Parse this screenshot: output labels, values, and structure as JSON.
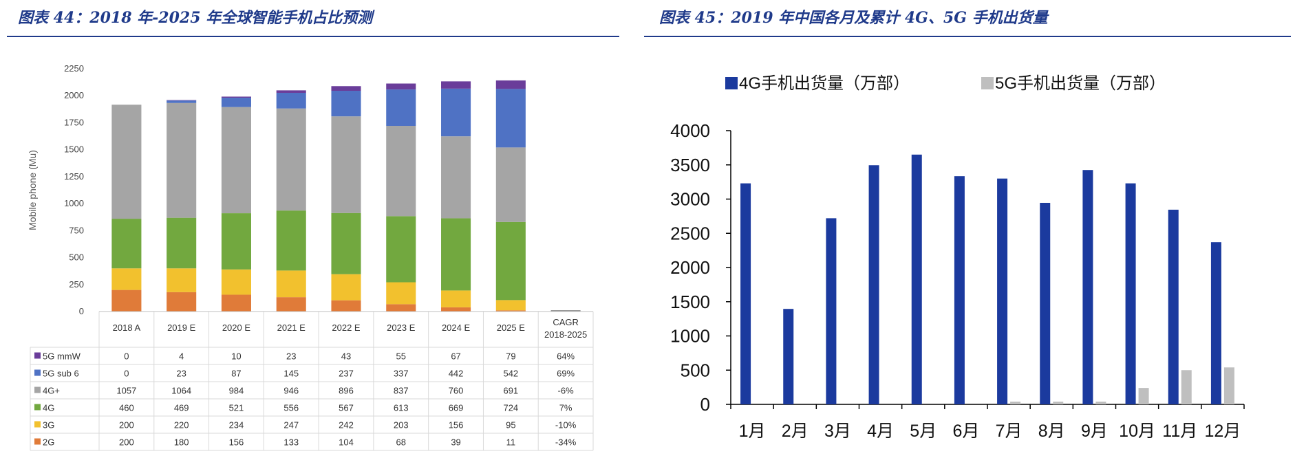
{
  "left": {
    "title": "图表 44：2018 年-2025 年全球智能手机占比预测",
    "chart_data": {
      "type": "bar",
      "stacked": true,
      "ylabel": "Mobile phone (Mu)",
      "ylim": [
        0,
        2250
      ],
      "yticks": [
        0,
        250,
        500,
        750,
        1000,
        1250,
        1500,
        1750,
        2000,
        2250
      ],
      "categories": [
        "2018 A",
        "2019 E",
        "2020 E",
        "2021 E",
        "2022 E",
        "2023 E",
        "2024 E",
        "2025 E"
      ],
      "extra_column": "CAGR 2018-2025",
      "series": [
        {
          "name": "2G",
          "color": "#E07B39",
          "values": [
            200,
            180,
            156,
            133,
            104,
            68,
            39,
            11
          ],
          "cagr": "-34%"
        },
        {
          "name": "3G",
          "color": "#F2C12E",
          "values": [
            200,
            220,
            234,
            247,
            242,
            203,
            156,
            95
          ],
          "cagr": "-10%"
        },
        {
          "name": "4G",
          "color": "#72A83F",
          "values": [
            460,
            469,
            521,
            556,
            567,
            613,
            669,
            724
          ],
          "cagr": "7%"
        },
        {
          "name": "4G+",
          "color": "#A5A5A5",
          "values": [
            1057,
            1064,
            984,
            946,
            896,
            837,
            760,
            691
          ],
          "cagr": "-6%"
        },
        {
          "name": "5G sub 6",
          "color": "#4F72C4",
          "values": [
            0,
            23,
            87,
            145,
            237,
            337,
            442,
            542
          ],
          "cagr": "69%"
        },
        {
          "name": "5G mmW",
          "color": "#6A3D9A",
          "values": [
            0,
            4,
            10,
            23,
            43,
            55,
            67,
            79
          ],
          "cagr": "64%"
        }
      ]
    }
  },
  "right": {
    "title": "图表 45：2019 年中国各月及累计 4G、5G 手机出货量",
    "chart_data": {
      "type": "bar",
      "ylim": [
        0,
        4000
      ],
      "yticks": [
        0,
        500,
        1000,
        1500,
        2000,
        2500,
        3000,
        3500,
        4000
      ],
      "categories": [
        "1月",
        "2月",
        "3月",
        "4月",
        "5月",
        "6月",
        "7月",
        "8月",
        "9月",
        "10月",
        "11月",
        "12月"
      ],
      "series": [
        {
          "name": "4G手机出货量（万部）",
          "color": "#1B3A9E",
          "values": [
            3230,
            1395,
            2720,
            3495,
            3650,
            3335,
            3300,
            2945,
            3425,
            3230,
            2845,
            2370
          ]
        },
        {
          "name": "5G手机出货量（万部）",
          "color": "#BFBFBF",
          "values": [
            0,
            0,
            0,
            0,
            0,
            0,
            40,
            40,
            40,
            240,
            500,
            540
          ]
        }
      ]
    }
  }
}
